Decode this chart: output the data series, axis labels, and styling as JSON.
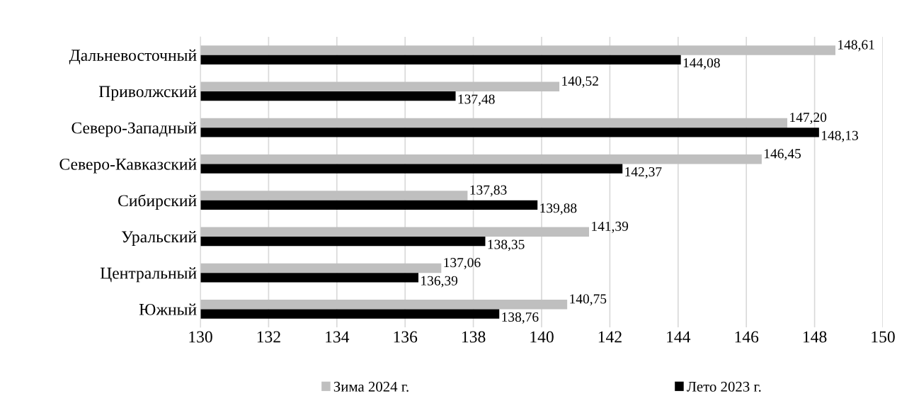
{
  "chart_data": {
    "type": "bar",
    "orientation": "horizontal",
    "categories": [
      "Дальневосточный",
      "Приволжский",
      "Северо-Западный",
      "Северо-Кавказский",
      "Сибирский",
      "Уральский",
      "Центральный",
      "Южный"
    ],
    "series": [
      {
        "name": "Зима 2024 г.",
        "color": "#bfbfbf",
        "values": [
          148.61,
          140.52,
          147.2,
          146.45,
          137.83,
          141.39,
          137.06,
          140.75
        ],
        "value_labels": [
          "148,61",
          "140,52",
          "147,20",
          "146,45",
          "137,83",
          "141,39",
          "137,06",
          "140,75"
        ]
      },
      {
        "name": "Лето 2023 г.",
        "color": "#000000",
        "values": [
          144.08,
          137.48,
          148.13,
          142.37,
          139.88,
          138.35,
          136.39,
          138.76
        ],
        "value_labels": [
          "144,08",
          "137,48",
          "148,13",
          "142,37",
          "139,88",
          "138,35",
          "136,39",
          "138,76"
        ]
      }
    ],
    "xlim": [
      130,
      150
    ],
    "xticks": [
      130,
      132,
      134,
      136,
      138,
      140,
      142,
      144,
      146,
      148,
      150
    ],
    "grid": "x",
    "legend": "bottom"
  }
}
